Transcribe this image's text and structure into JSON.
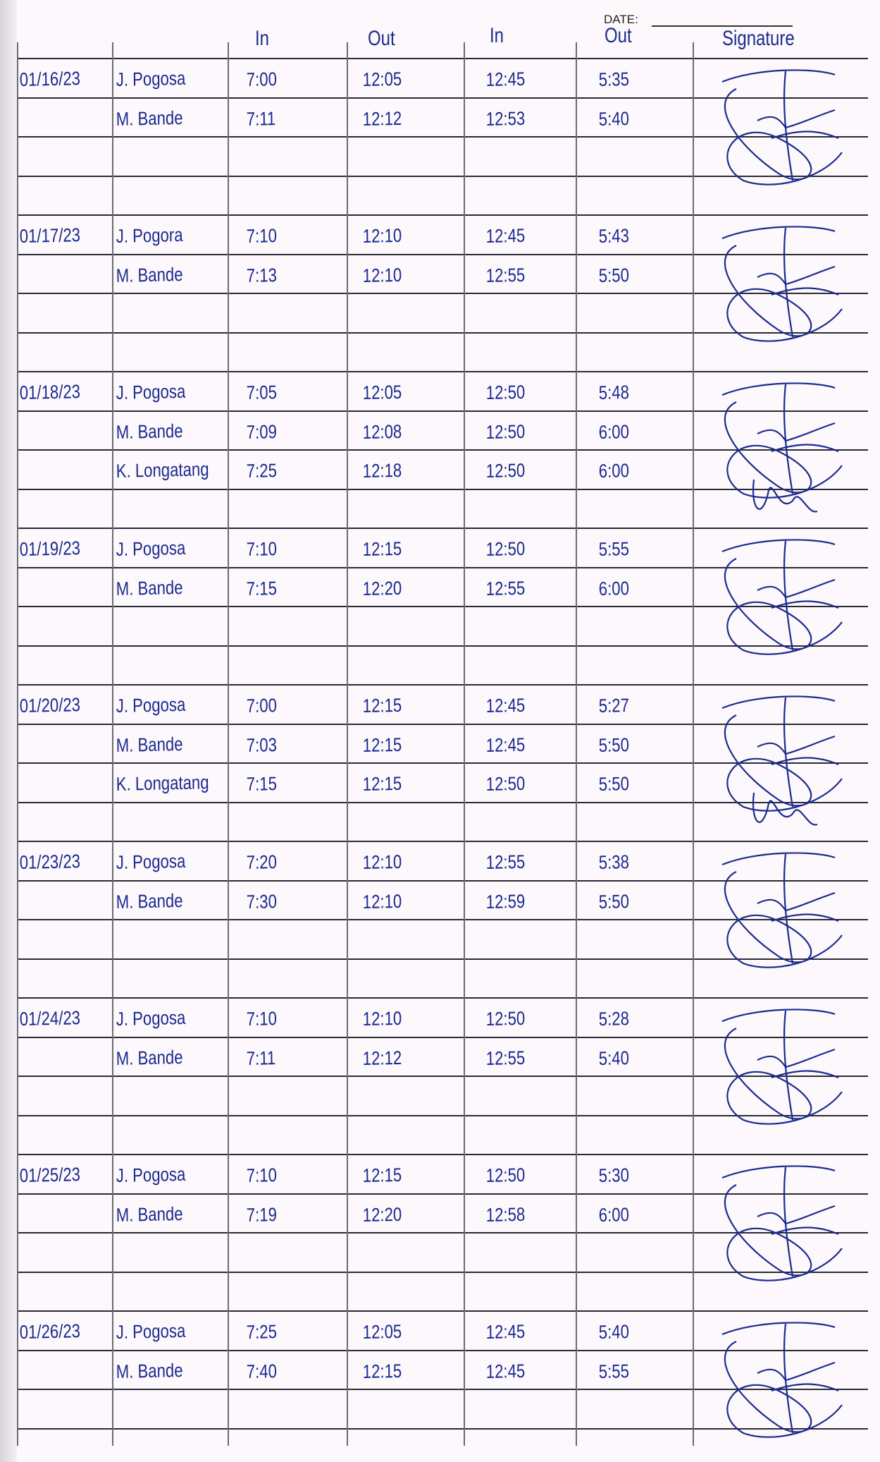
{
  "header": {
    "date_label": "DATE:",
    "columns": [
      "In",
      "Out",
      "In",
      "Out",
      "Signature"
    ]
  },
  "ink_color": "#1b2b8e",
  "entries": [
    {
      "date": "01/16/23",
      "rows": [
        {
          "name": "J. Pogosa",
          "am_in": "7:00",
          "am_out": "12:05",
          "pm_in": "12:45",
          "pm_out": "5:35"
        },
        {
          "name": "M. Bande",
          "am_in": "7:11",
          "am_out": "12:12",
          "pm_in": "12:53",
          "pm_out": "5:40"
        }
      ]
    },
    {
      "date": "01/17/23",
      "rows": [
        {
          "name": "J. Pogora",
          "am_in": "7:10",
          "am_out": "12:10",
          "pm_in": "12:45",
          "pm_out": "5:43"
        },
        {
          "name": "M. Bande",
          "am_in": "7:13",
          "am_out": "12:10",
          "pm_in": "12:55",
          "pm_out": "5:50"
        }
      ]
    },
    {
      "date": "01/18/23",
      "rows": [
        {
          "name": "J. Pogosa",
          "am_in": "7:05",
          "am_out": "12:05",
          "pm_in": "12:50",
          "pm_out": "5:48"
        },
        {
          "name": "M. Bande",
          "am_in": "7:09",
          "am_out": "12:08",
          "pm_in": "12:50",
          "pm_out": "6:00"
        },
        {
          "name": "K. Longatang",
          "am_in": "7:25",
          "am_out": "12:18",
          "pm_in": "12:50",
          "pm_out": "6:00"
        }
      ]
    },
    {
      "date": "01/19/23",
      "rows": [
        {
          "name": "J. Pogosa",
          "am_in": "7:10",
          "am_out": "12:15",
          "pm_in": "12:50",
          "pm_out": "5:55"
        },
        {
          "name": "M. Bande",
          "am_in": "7:15",
          "am_out": "12:20",
          "pm_in": "12:55",
          "pm_out": "6:00"
        }
      ]
    },
    {
      "date": "01/20/23",
      "rows": [
        {
          "name": "J. Pogosa",
          "am_in": "7:00",
          "am_out": "12:15",
          "pm_in": "12:45",
          "pm_out": "5:27"
        },
        {
          "name": "M. Bande",
          "am_in": "7:03",
          "am_out": "12:15",
          "pm_in": "12:45",
          "pm_out": "5:50"
        },
        {
          "name": "K. Longatang",
          "am_in": "7:15",
          "am_out": "12:15",
          "pm_in": "12:50",
          "pm_out": "5:50"
        }
      ]
    },
    {
      "date": "01/23/23",
      "rows": [
        {
          "name": "J. Pogosa",
          "am_in": "7:20",
          "am_out": "12:10",
          "pm_in": "12:55",
          "pm_out": "5:38"
        },
        {
          "name": "M. Bande",
          "am_in": "7:30",
          "am_out": "12:10",
          "pm_in": "12:59",
          "pm_out": "5:50"
        }
      ]
    },
    {
      "date": "01/24/23",
      "rows": [
        {
          "name": "J. Pogosa",
          "am_in": "7:10",
          "am_out": "12:10",
          "pm_in": "12:50",
          "pm_out": "5:28"
        },
        {
          "name": "M. Bande",
          "am_in": "7:11",
          "am_out": "12:12",
          "pm_in": "12:55",
          "pm_out": "5:40"
        }
      ]
    },
    {
      "date": "01/25/23",
      "rows": [
        {
          "name": "J. Pogosa",
          "am_in": "7:10",
          "am_out": "12:15",
          "pm_in": "12:50",
          "pm_out": "5:30"
        },
        {
          "name": "M. Bande",
          "am_in": "7:19",
          "am_out": "12:20",
          "pm_in": "12:58",
          "pm_out": "6:00"
        }
      ]
    },
    {
      "date": "01/26/23",
      "rows": [
        {
          "name": "J. Pogosa",
          "am_in": "7:25",
          "am_out": "12:05",
          "pm_in": "12:45",
          "pm_out": "5:40"
        },
        {
          "name": "M. Bande",
          "am_in": "7:40",
          "am_out": "12:15",
          "pm_in": "12:45",
          "pm_out": "5:55"
        }
      ]
    }
  ]
}
